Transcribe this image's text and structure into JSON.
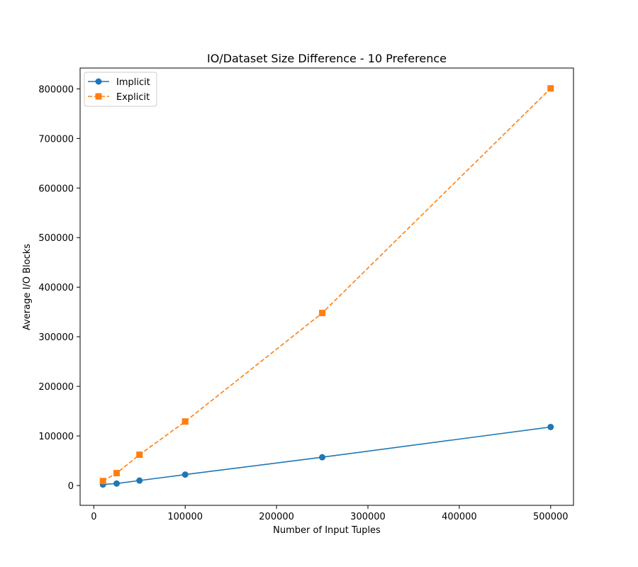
{
  "chart_data": {
    "type": "line",
    "title": "IO/Dataset Size Difference - 10 Preference",
    "xlabel": "Number of Input Tuples",
    "ylabel": "Average I/O Blocks",
    "xlim": [
      -15000,
      525000
    ],
    "ylim": [
      -40000,
      842000
    ],
    "xticks": [
      0,
      100000,
      200000,
      300000,
      400000,
      500000
    ],
    "yticks": [
      0,
      100000,
      200000,
      300000,
      400000,
      500000,
      600000,
      700000,
      800000
    ],
    "legend_position": "top-left",
    "grid": false,
    "x": [
      10000,
      25000,
      50000,
      100000,
      250000,
      500000
    ],
    "series": [
      {
        "name": "Implicit",
        "color": "#1f77b4",
        "linestyle": "solid",
        "marker": "circle",
        "values": [
          2000,
          4000,
          10000,
          22000,
          57000,
          118000
        ]
      },
      {
        "name": "Explicit",
        "color": "#ff7f0e",
        "linestyle": "dashed",
        "marker": "square",
        "values": [
          9000,
          25000,
          62000,
          129000,
          348000,
          801000
        ]
      }
    ]
  }
}
